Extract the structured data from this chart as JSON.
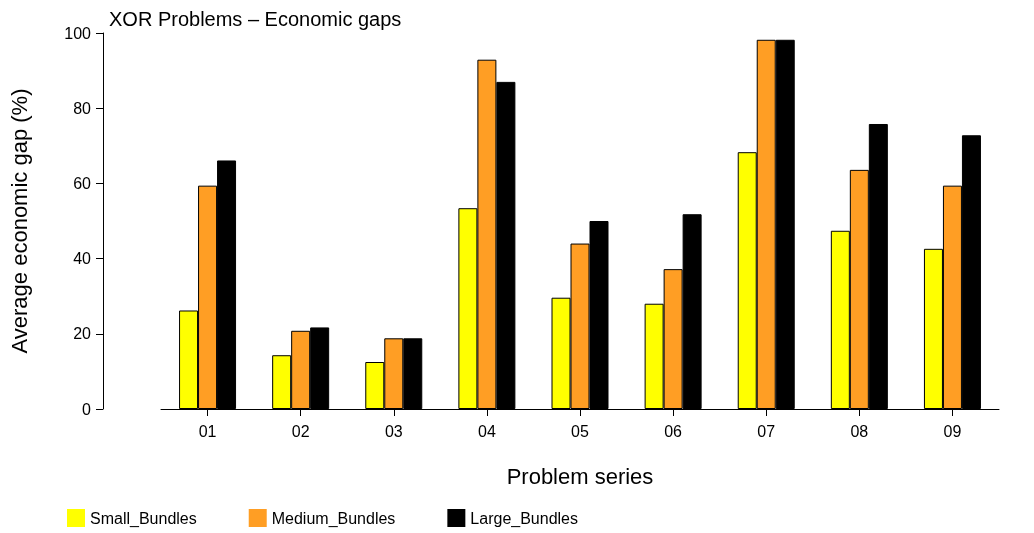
{
  "chart_data": {
    "type": "bar",
    "title": "XOR Problems – Economic gaps",
    "xlabel": "Problem series",
    "ylabel": "Average economic gap (%)",
    "categories": [
      "01",
      "02",
      "03",
      "04",
      "05",
      "06",
      "07",
      "08",
      "09"
    ],
    "series": [
      {
        "name": "Small_Bundles",
        "color": "#ffff00",
        "values": [
          26.2,
          14.3,
          12.5,
          53.4,
          29.6,
          28.0,
          68.3,
          47.4,
          42.6
        ]
      },
      {
        "name": "Medium_Bundles",
        "color": "#ff9e24",
        "values": [
          59.4,
          20.8,
          18.8,
          92.9,
          44.0,
          37.2,
          98.2,
          63.6,
          59.4
        ]
      },
      {
        "name": "Large_Bundles",
        "color": "#000000",
        "values": [
          66.1,
          21.7,
          18.8,
          87.0,
          50.0,
          51.8,
          98.2,
          75.8,
          72.8
        ]
      }
    ],
    "ylim": [
      0,
      100
    ],
    "yticks": [
      0,
      20,
      40,
      60,
      80,
      100
    ],
    "grid": false,
    "legend": "bottom left"
  }
}
